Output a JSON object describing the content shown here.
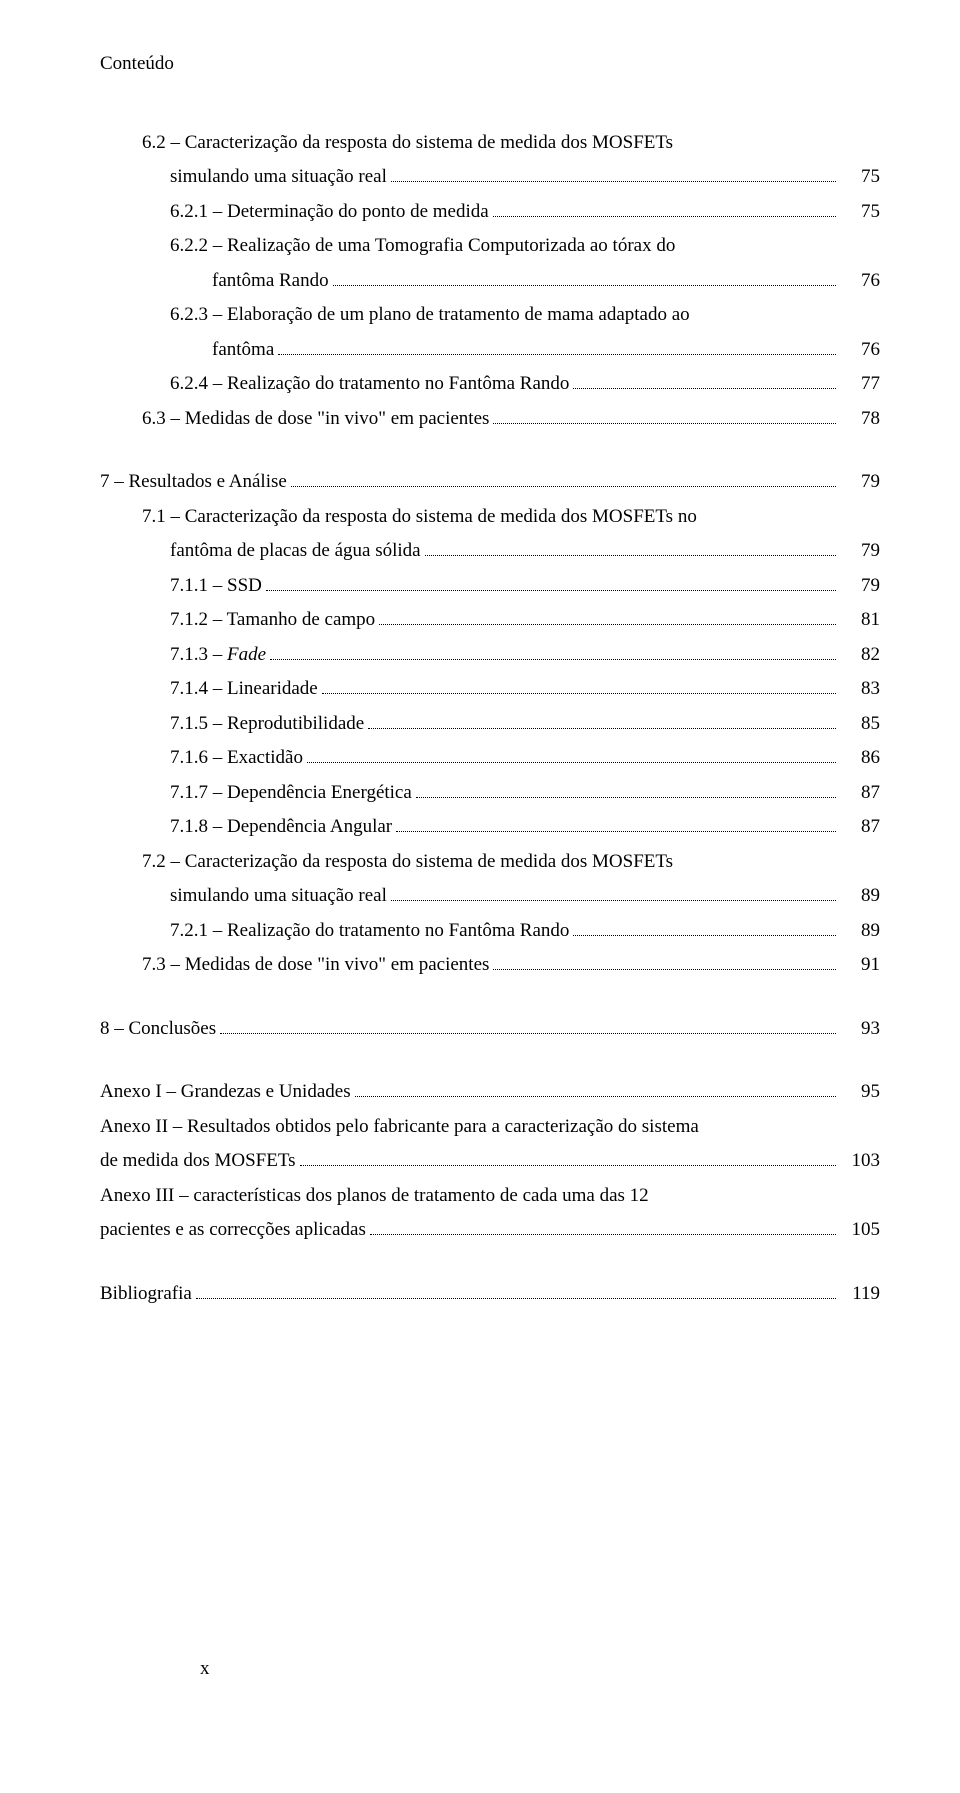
{
  "header": "Conteúdo",
  "footer_page": "x",
  "sections": {
    "s62": {
      "line1": "6.2 – Caracterização da resposta do sistema de medida dos MOSFETs",
      "line2": "simulando uma situação real",
      "page": "75"
    },
    "s621": {
      "label": "6.2.1 – Determinação do ponto de medida",
      "page": "75"
    },
    "s622": {
      "line1": "6.2.2 – Realização de uma Tomografia Computorizada ao tórax do",
      "line2": "fantôma Rando",
      "page": "76"
    },
    "s623": {
      "line1": "6.2.3 – Elaboração de um plano de tratamento de mama adaptado ao",
      "line2": "fantôma",
      "page": "76"
    },
    "s624": {
      "label": "6.2.4 – Realização do tratamento no Fantôma Rando",
      "page": "77"
    },
    "s63": {
      "label": "6.3 – Medidas de dose \"in vivo\" em pacientes",
      "page": "78"
    },
    "s7": {
      "label": "7 – Resultados e Análise",
      "page": "79"
    },
    "s71": {
      "line1": "7.1 – Caracterização da resposta do sistema de medida dos MOSFETs no",
      "line2": "fantôma de placas de água sólida",
      "page": "79"
    },
    "s711": {
      "label": "7.1.1 – SSD",
      "page": "79"
    },
    "s712": {
      "label": "7.1.2 – Tamanho de campo",
      "page": "81"
    },
    "s713": {
      "prefix": "7.1.3 – ",
      "italic": "Fade",
      "page": "82"
    },
    "s714": {
      "label": "7.1.4 – Linearidade",
      "page": "83"
    },
    "s715": {
      "label": "7.1.5 – Reprodutibilidade",
      "page": "85"
    },
    "s716": {
      "label": "7.1.6 – Exactidão",
      "page": "86"
    },
    "s717": {
      "label": "7.1.7 – Dependência Energética",
      "page": "87"
    },
    "s718": {
      "label": "7.1.8 – Dependência Angular",
      "page": "87"
    },
    "s72": {
      "line1": "7.2 – Caracterização da resposta do sistema de medida dos MOSFETs",
      "line2": "simulando uma situação real",
      "page": "89"
    },
    "s721": {
      "label": "7.2.1 – Realização do tratamento no Fantôma Rando",
      "page": "89"
    },
    "s73": {
      "label": "7.3 – Medidas de dose \"in vivo\" em pacientes",
      "page": "91"
    },
    "s8": {
      "label": "8 – Conclusões",
      "page": "93"
    },
    "a1": {
      "label": "Anexo I – Grandezas e Unidades",
      "page": "95"
    },
    "a2": {
      "line1": "Anexo II – Resultados obtidos pelo fabricante para a caracterização do sistema",
      "line2": "de medida dos MOSFETs",
      "page": "103"
    },
    "a3": {
      "line1": "Anexo III – características dos planos de tratamento de cada uma das 12",
      "line2": "pacientes e as correcções aplicadas",
      "page": "105"
    },
    "bib": {
      "label": "Bibliografia",
      "page": "119"
    }
  }
}
